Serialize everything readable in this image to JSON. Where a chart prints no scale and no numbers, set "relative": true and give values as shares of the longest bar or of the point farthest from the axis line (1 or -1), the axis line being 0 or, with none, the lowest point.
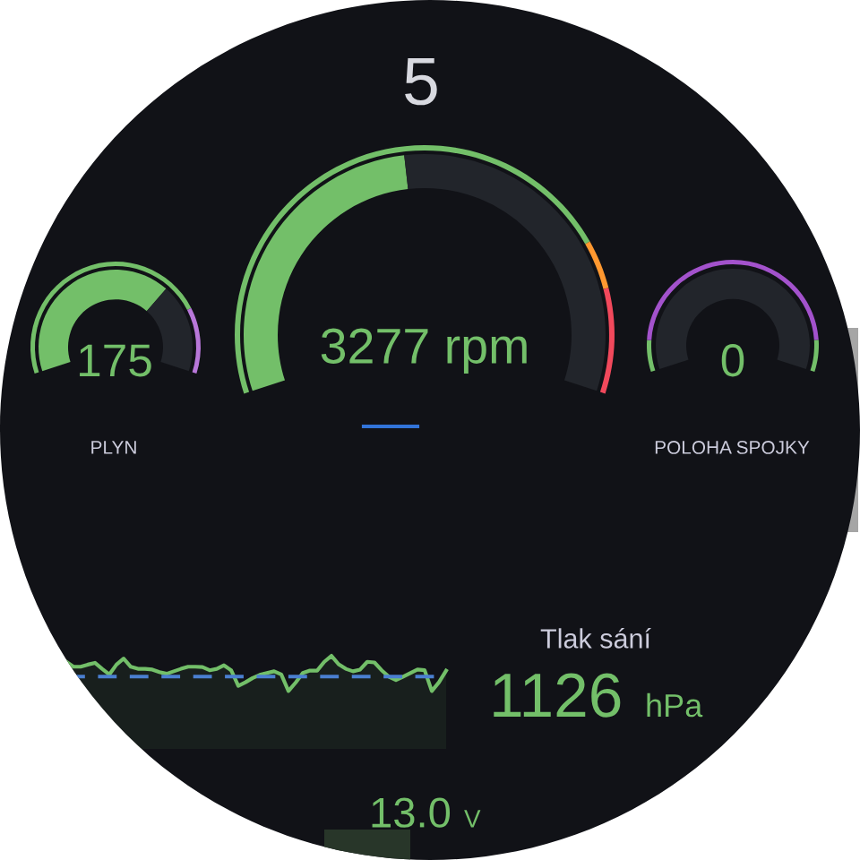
{
  "chart_data": [
    {
      "type": "other",
      "annotations": [
        "5"
      ]
    },
    {
      "type": "donut",
      "title": "PLYN",
      "annotations": [
        "175"
      ],
      "series": [
        {
          "values": [
            69,
            31
          ],
          "colors": [
            "#73bf69",
            "#22252b"
          ]
        },
        {
          "values": [
            79,
            21
          ],
          "colors": [
            "#73bf69",
            "#b877d9"
          ]
        }
      ]
    },
    {
      "type": "donut",
      "annotations": [
        "3277 rpm"
      ],
      "series": [
        {
          "values": [
            47,
            53
          ],
          "colors": [
            "#73bf69",
            "#22252b"
          ]
        },
        {
          "values": [
            78,
            7,
            15
          ],
          "colors": [
            "#73bf69",
            "#ff9830",
            "#f2495c"
          ]
        }
      ]
    },
    {
      "type": "donut",
      "title": "POLOHA SPOJKY",
      "annotations": [
        "0"
      ],
      "series": [
        {
          "values": [
            0,
            100
          ],
          "colors": [
            "#73bf69",
            "#22252b"
          ]
        },
        {
          "values": [
            10,
            80,
            10
          ],
          "colors": [
            "#73bf69",
            "#a352cc",
            "#73bf69"
          ]
        }
      ]
    },
    {
      "type": "line",
      "relative": true,
      "categories": [
        null,
        null,
        null,
        null,
        null,
        null,
        null,
        null,
        null,
        null,
        null,
        null,
        null,
        null,
        null,
        null,
        null,
        null,
        null,
        null,
        null,
        null,
        null,
        null,
        null,
        null,
        null,
        null,
        null,
        null,
        null,
        null,
        null,
        null,
        null,
        null,
        null,
        null,
        null,
        null,
        null,
        null,
        null,
        null,
        null,
        null,
        null,
        null,
        null,
        null,
        null,
        null,
        null,
        null
      ],
      "series": [
        {
          "color": "#73bf69",
          "values": [
            0.83,
            0.69,
            0.69,
            0.75,
            0.8,
            0.63,
            0.47,
            0.75,
            0.92,
            0.69,
            0.63,
            0.63,
            0.61,
            0.54,
            0.49,
            0.56,
            0.63,
            0.69,
            0.69,
            0.68,
            0.59,
            0.63,
            0.73,
            0.59,
            0.15,
            0.25,
            0.37,
            0.46,
            0.51,
            0.56,
            0.47,
            0.0,
            0.24,
            0.51,
            0.58,
            0.58,
            0.83,
            1.0,
            0.76,
            0.63,
            0.56,
            0.61,
            0.83,
            0.81,
            0.59,
            0.41,
            0.31,
            0.41,
            0.51,
            0.61,
            0.59,
            0.0,
            0.25,
            0.58
          ]
        }
      ],
      "ref_lines": [
        {
          "axis": "y",
          "value": 0.41,
          "color": "#4a7fd0",
          "line_style": "dashed"
        }
      ]
    },
    {
      "type": "other",
      "title": "Tlak sání",
      "annotations": [
        "1126",
        "hPa"
      ]
    },
    {
      "type": "other",
      "annotations": [
        "13.0",
        "V"
      ]
    }
  ]
}
